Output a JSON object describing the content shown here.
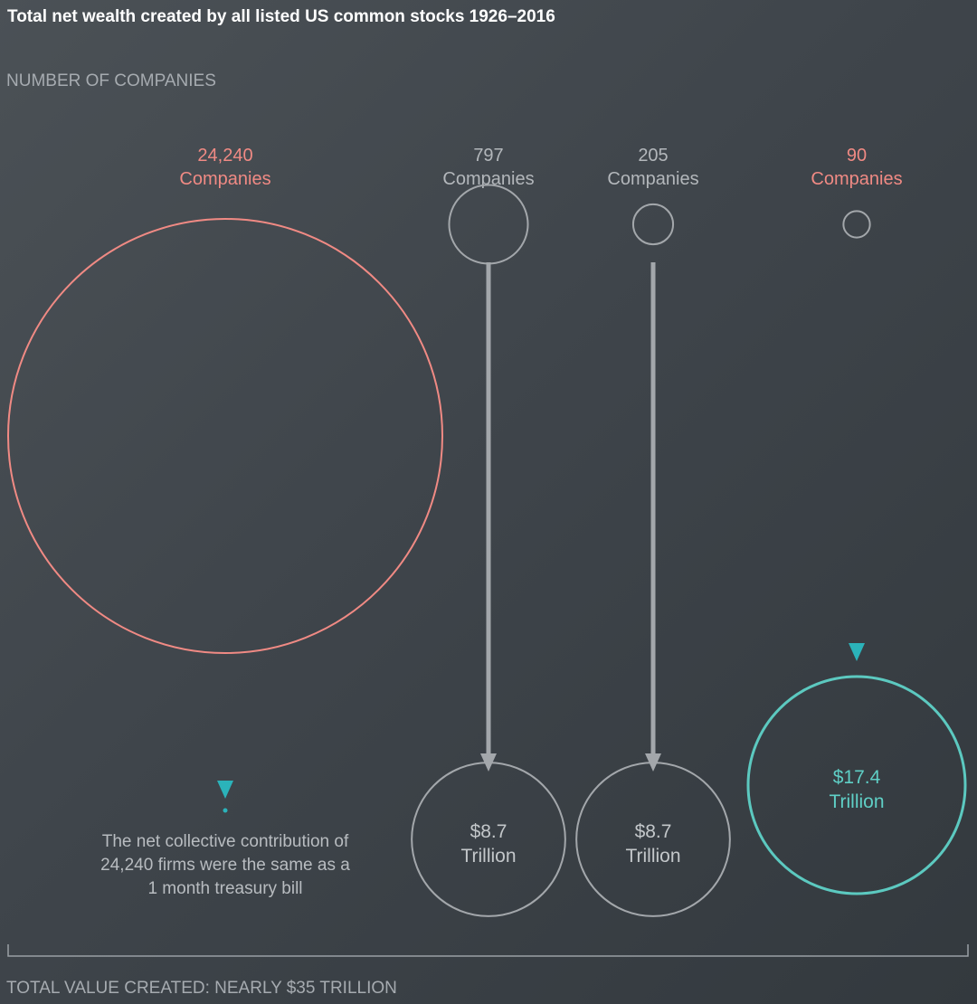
{
  "title": "Total net wealth created by all listed US common stocks 1926–2016",
  "subtitle": "NUMBER OF COMPANIES",
  "footer": "TOTAL VALUE CREATED: NEARLY $35 TRILLION",
  "colors": {
    "coral": "#f08a84",
    "grey": "#a3a7ab",
    "teal": "#2bb3ba",
    "teal_text": "#5fcfc6"
  },
  "chart_data": {
    "type": "bubble-flow",
    "title": "Total net wealth created by all listed US common stocks 1926–2016",
    "groups": [
      {
        "companies": 24240,
        "companies_label": "24,240",
        "unit_label": "Companies",
        "value_trillion": 0,
        "value_label": "",
        "value_unit": "",
        "note": [
          "The net collective contribution of",
          "24,240 firms were the same as a",
          "1 month treasury bill"
        ],
        "color": "coral"
      },
      {
        "companies": 797,
        "companies_label": "797",
        "unit_label": "Companies",
        "value_trillion": 8.7,
        "value_label": "$8.7",
        "value_unit": "Trillion",
        "color": "grey"
      },
      {
        "companies": 205,
        "companies_label": "205",
        "unit_label": "Companies",
        "value_trillion": 8.7,
        "value_label": "$8.7",
        "value_unit": "Trillion",
        "color": "grey"
      },
      {
        "companies": 90,
        "companies_label": "90",
        "unit_label": "Companies",
        "value_trillion": 17.4,
        "value_label": "$17.4",
        "value_unit": "Trillion",
        "color": "coral"
      }
    ],
    "total_label": "TOTAL VALUE CREATED: NEARLY $35 TRILLION"
  }
}
